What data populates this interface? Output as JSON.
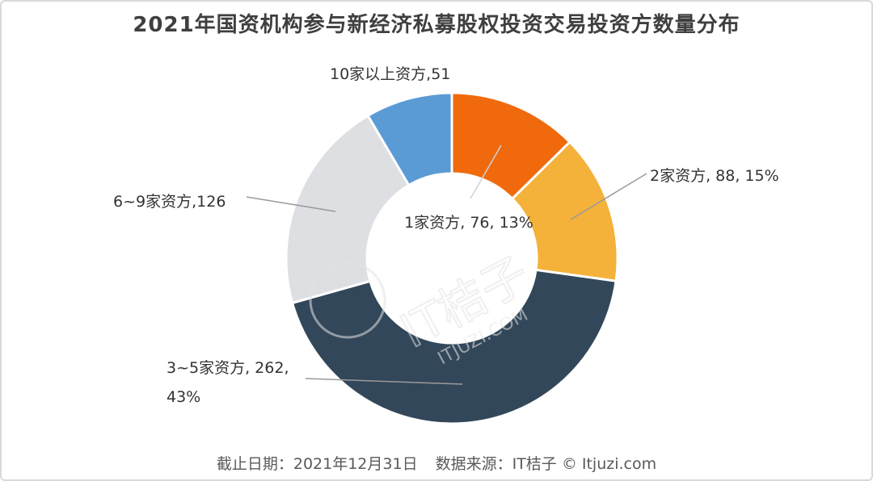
{
  "chart_data": {
    "type": "pie",
    "donut": true,
    "title": "2021年国资机构参与新经济私募股权投资交易投资方数量分布",
    "categories": [
      "1家资方",
      "2家资方",
      "3~5家资方",
      "6~9家资方",
      "10家以上资方"
    ],
    "values": [
      76,
      88,
      262,
      126,
      51
    ],
    "colors": [
      "#f06a0d",
      "#f4b23a",
      "#33475a",
      "#dedfe3",
      "#5b9bd5"
    ],
    "labels": [
      {
        "lines": [
          "1家资方, 76, 13%"
        ]
      },
      {
        "lines": [
          "2家资方, 88, 15%"
        ]
      },
      {
        "lines": [
          "3~5家资方, 262,",
          "43%"
        ]
      },
      {
        "lines": [
          "6~9家资方,126"
        ]
      },
      {
        "lines": [
          "10家以上资方,51"
        ]
      }
    ]
  },
  "watermark": {
    "brand": "IT桔子",
    "domain": "ITJUZI.COM"
  },
  "footer": {
    "date": "截止日期：2021年12月31日",
    "source": "数据来源：IT桔子 © Itjuzi.com"
  }
}
